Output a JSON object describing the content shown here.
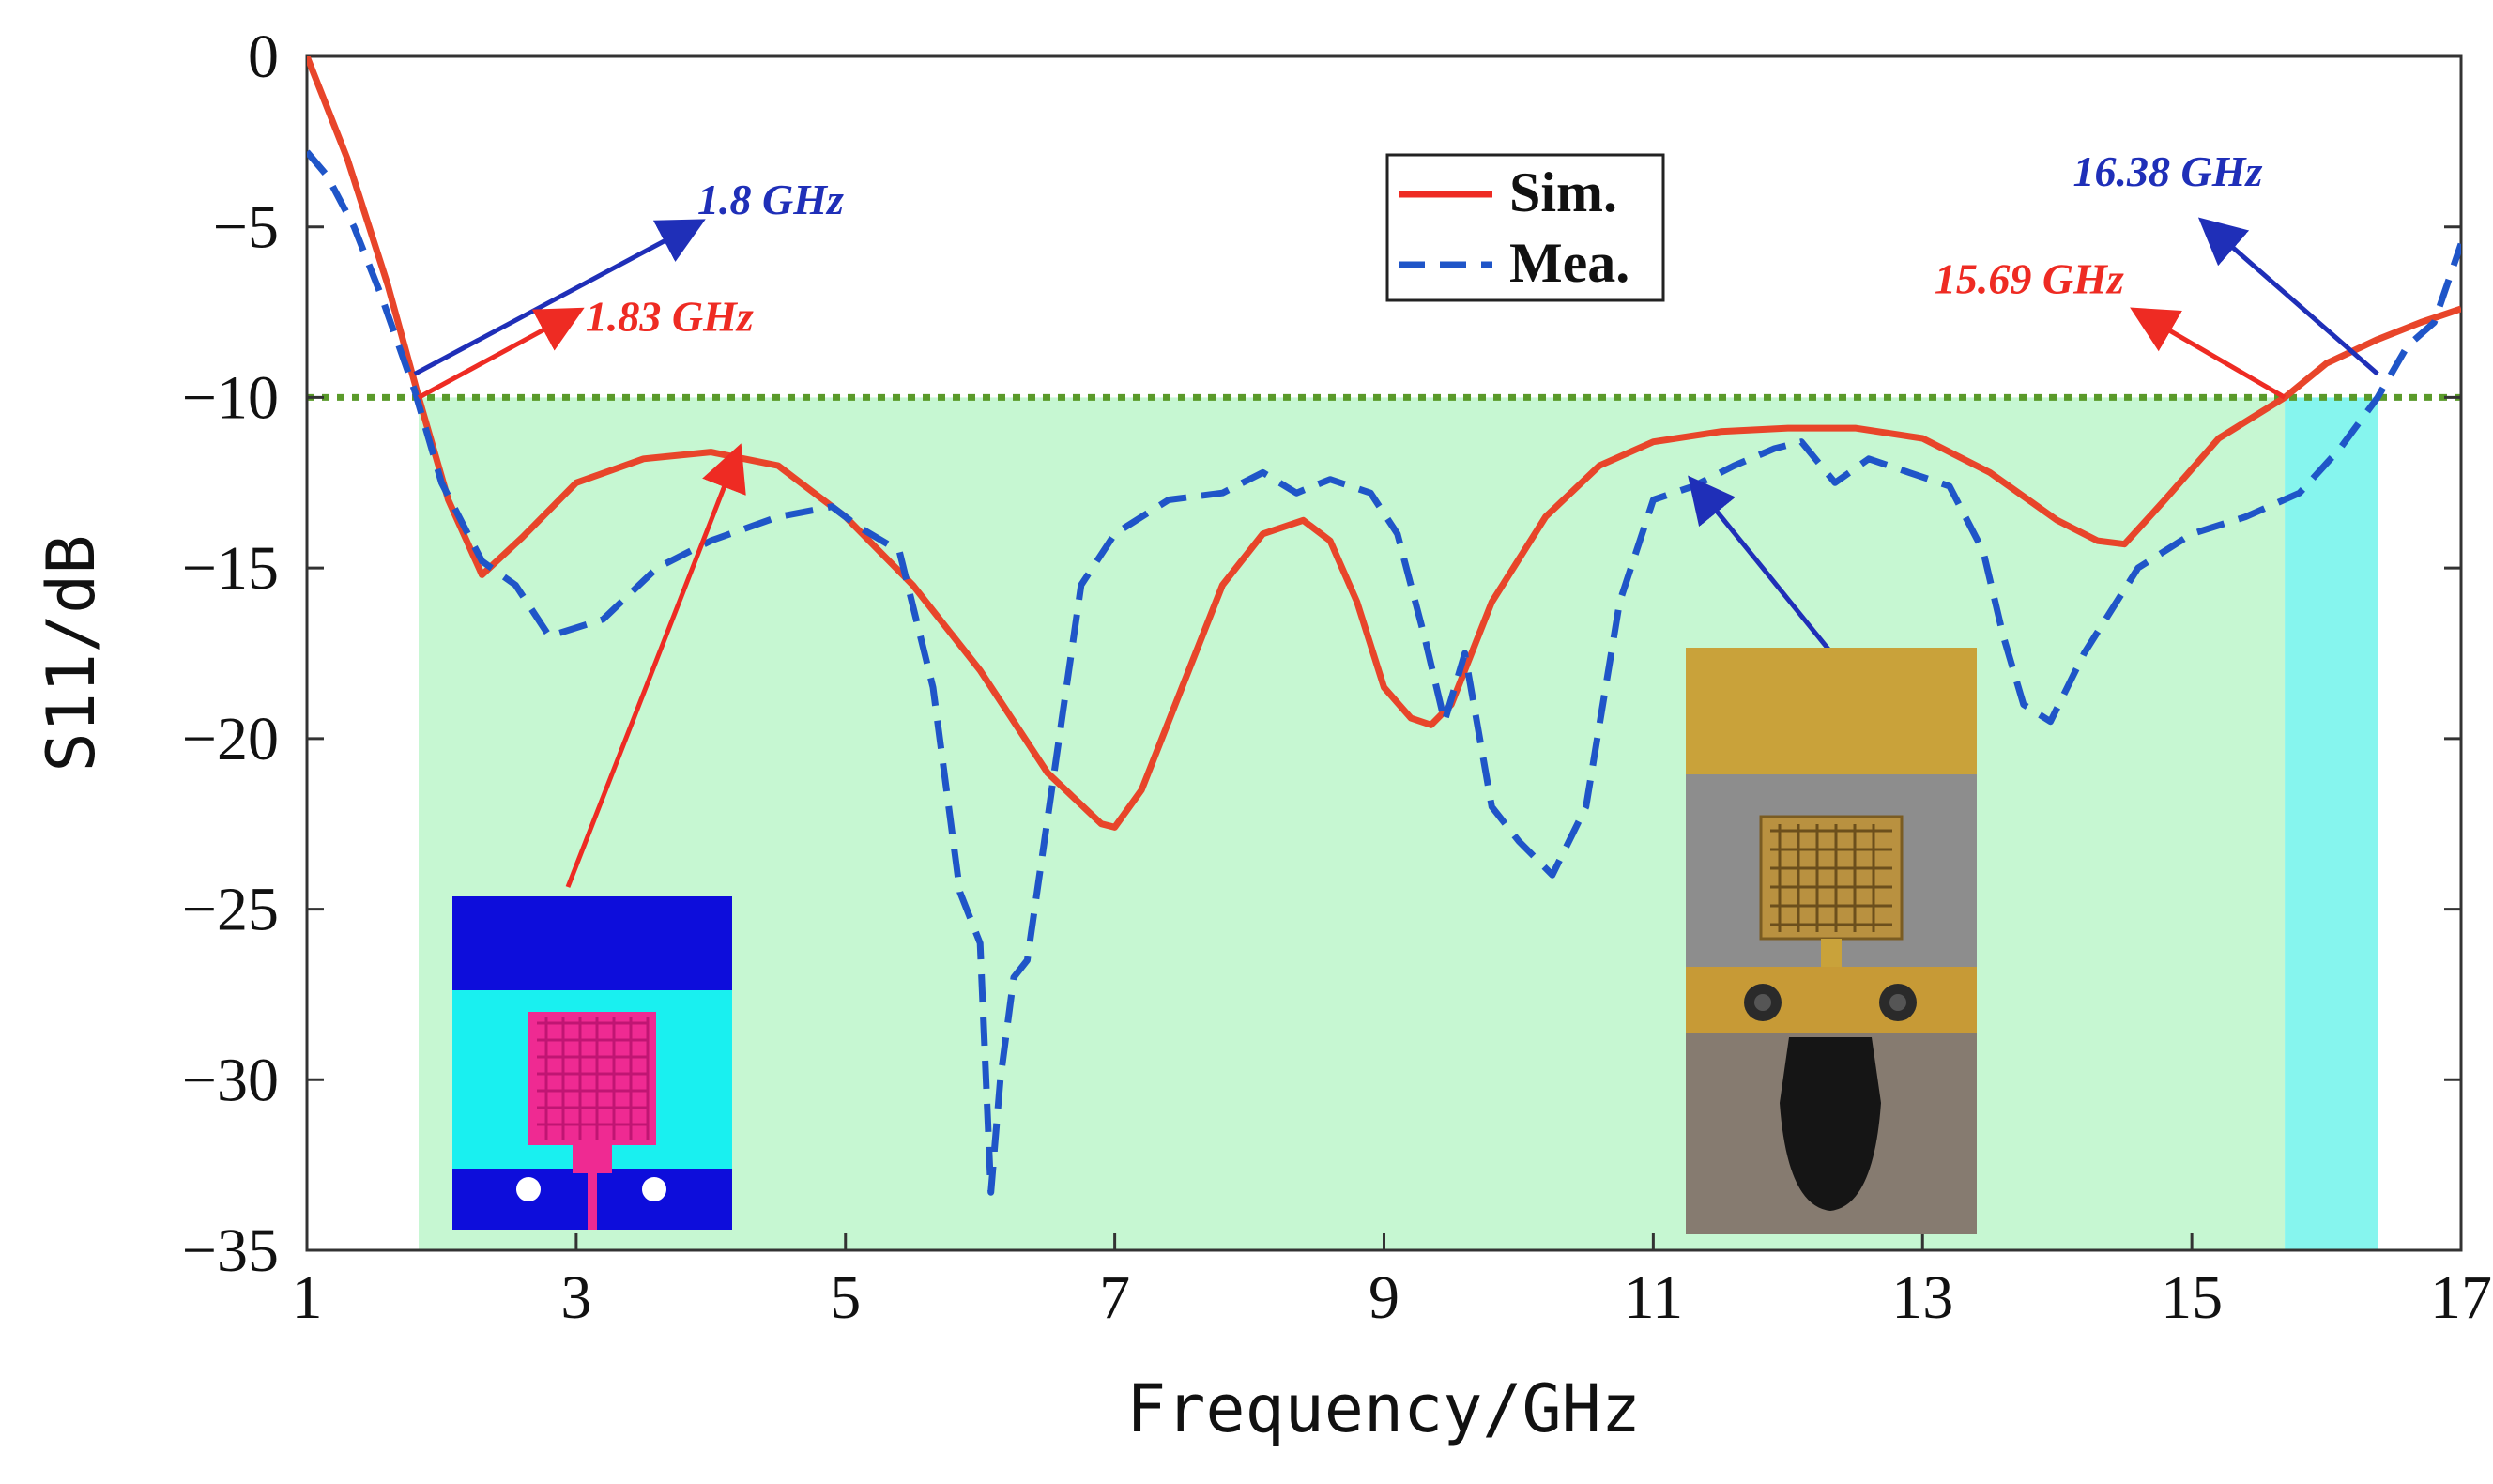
{
  "chart_data": {
    "type": "line",
    "xlabel": "Frequency/GHz",
    "ylabel": "S11/dB",
    "xlim": [
      1,
      17
    ],
    "ylim": [
      -35,
      0
    ],
    "xticks": [
      1,
      3,
      5,
      7,
      9,
      11,
      13,
      15,
      17
    ],
    "yticks": [
      0,
      -5,
      -10,
      -15,
      -20,
      -25,
      -30,
      -35
    ],
    "threshold": -10,
    "shaded_bands": [
      {
        "from": 1.83,
        "to": 15.69,
        "color": "#c6f7d2"
      },
      {
        "from": 15.69,
        "to": 16.38,
        "color": "#86f5ee"
      }
    ],
    "legend": {
      "position": "top-center",
      "entries": [
        "Sim.",
        "Mea."
      ]
    },
    "series": [
      {
        "name": "Sim.",
        "color": "#e8452a",
        "style": "solid",
        "x": [
          1.0,
          1.3,
          1.6,
          1.83,
          2.05,
          2.3,
          2.6,
          3.0,
          3.5,
          4.0,
          4.5,
          5.0,
          5.5,
          6.0,
          6.5,
          6.9,
          7.0,
          7.2,
          7.5,
          7.8,
          8.1,
          8.4,
          8.6,
          8.8,
          9.0,
          9.2,
          9.35,
          9.5,
          9.8,
          10.2,
          10.6,
          11.0,
          11.5,
          12.0,
          12.5,
          13.0,
          13.5,
          14.0,
          14.3,
          14.5,
          14.8,
          15.2,
          15.69,
          16.0,
          16.38,
          16.7,
          17.0
        ],
        "values": [
          0.0,
          -3.0,
          -6.7,
          -10.0,
          -13.0,
          -15.2,
          -14.1,
          -12.5,
          -11.8,
          -11.6,
          -12.0,
          -13.5,
          -15.5,
          -18.0,
          -21.0,
          -22.5,
          -22.6,
          -21.5,
          -18.5,
          -15.5,
          -14.0,
          -13.6,
          -14.2,
          -16.0,
          -18.5,
          -19.4,
          -19.6,
          -19.0,
          -16.0,
          -13.5,
          -12.0,
          -11.3,
          -11.0,
          -10.9,
          -10.9,
          -11.2,
          -12.2,
          -13.6,
          -14.2,
          -14.3,
          -13.0,
          -11.2,
          -10.0,
          -9.0,
          -8.3,
          -7.8,
          -7.4
        ]
      },
      {
        "name": "Mea.",
        "color": "#1f55c8",
        "style": "dashed",
        "x": [
          1.0,
          1.15,
          1.35,
          1.55,
          1.8,
          2.0,
          2.3,
          2.55,
          2.8,
          3.2,
          3.6,
          4.0,
          4.5,
          4.9,
          5.1,
          5.4,
          5.65,
          5.85,
          6.0,
          6.08,
          6.15,
          6.25,
          6.35,
          6.55,
          6.75,
          7.0,
          7.4,
          7.8,
          8.1,
          8.35,
          8.6,
          8.9,
          9.1,
          9.3,
          9.45,
          9.6,
          9.8,
          10.0,
          10.25,
          10.5,
          10.75,
          11.0,
          11.3,
          11.6,
          11.9,
          12.1,
          12.35,
          12.6,
          12.9,
          13.2,
          13.45,
          13.6,
          13.75,
          13.95,
          14.2,
          14.6,
          15.0,
          15.4,
          15.8,
          16.1,
          16.38,
          16.6,
          16.8,
          17.0
        ],
        "values": [
          -2.8,
          -3.5,
          -5.0,
          -7.0,
          -9.8,
          -12.5,
          -14.8,
          -15.5,
          -17.0,
          -16.5,
          -15.0,
          -14.2,
          -13.5,
          -13.2,
          -13.8,
          -14.5,
          -18.5,
          -24.5,
          -26.0,
          -33.3,
          -30.0,
          -27.0,
          -26.5,
          -21.0,
          -15.5,
          -14.0,
          -13.0,
          -12.8,
          -12.2,
          -12.8,
          -12.4,
          -12.8,
          -14.0,
          -17.0,
          -19.5,
          -17.5,
          -22.0,
          -23.0,
          -24.0,
          -22.0,
          -16.0,
          -13.0,
          -12.6,
          -12.0,
          -11.5,
          -11.3,
          -12.5,
          -11.8,
          -12.2,
          -12.6,
          -14.5,
          -17.0,
          -19.0,
          -19.5,
          -17.5,
          -15.0,
          -14.0,
          -13.5,
          -12.8,
          -11.5,
          -10.0,
          -8.5,
          -7.8,
          -5.5
        ]
      }
    ],
    "annotations": [
      {
        "text": "1.8 GHz",
        "color": "#1f2fb8",
        "freq": 1.8,
        "arrow_to": [
          3.9,
          -4.9
        ]
      },
      {
        "text": "1.83 GHz",
        "color": "#ee2b23",
        "freq": 1.83,
        "arrow_to": [
          3.0,
          -7.5
        ]
      },
      {
        "text": "15.69 GHz",
        "color": "#ee2b23",
        "freq": 15.69,
        "arrow_to": [
          14.6,
          -7.5
        ]
      },
      {
        "text": "16.38 GHz",
        "color": "#1f2fb8",
        "freq": 16.38,
        "arrow_to": [
          15.1,
          -4.9
        ]
      }
    ],
    "insets": [
      {
        "name": "simulated-antenna-layout",
        "arrow_target": [
          4.2,
          -11.6
        ]
      },
      {
        "name": "fabricated-antenna-photo",
        "arrow_target": [
          11.3,
          -12.5
        ]
      }
    ]
  }
}
